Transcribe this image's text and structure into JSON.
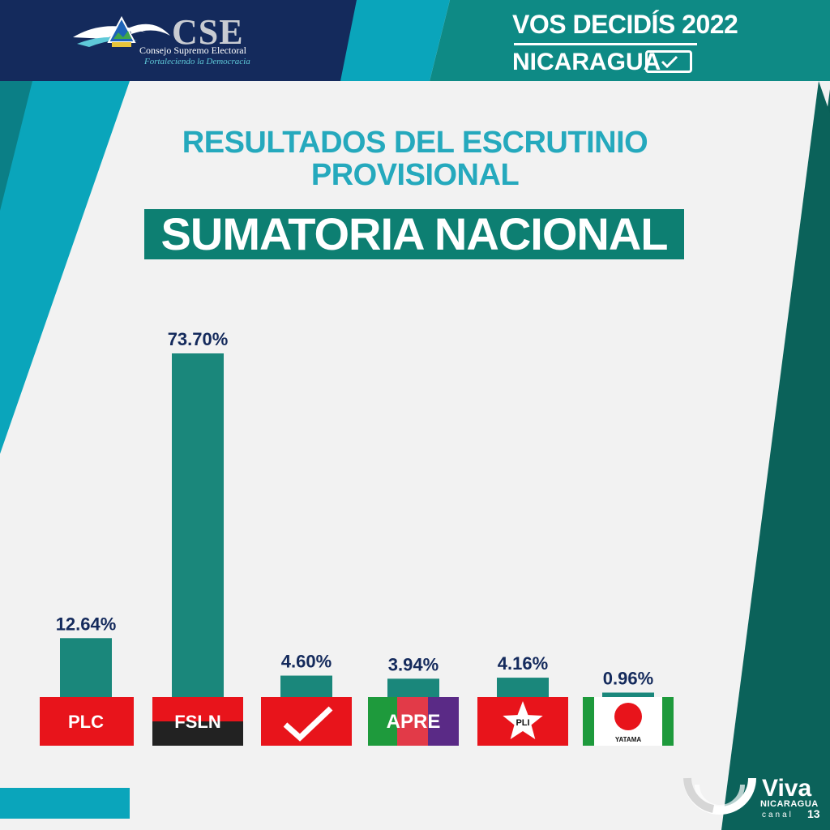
{
  "header": {
    "cse_name": "CSE",
    "cse_subtitle": "Consejo Supremo Electoral",
    "cse_tagline": "Fortaleciendo la Democracia",
    "campaign_line1": "VOS DECIDÍS 2022",
    "campaign_line2": "NICARAGUA"
  },
  "title": {
    "line1": "RESULTADOS DEL ESCRUTINIO",
    "line2": "PROVISIONAL",
    "banner": "SUMATORIA NACIONAL"
  },
  "footer": {
    "brand": "Viva",
    "brand_sub": "NICARAGUA",
    "channel": "canal",
    "channel_number": "13"
  },
  "colors": {
    "navy": "#142a5c",
    "teal_dark": "#0d7f72",
    "teal_mid": "#0e8a85",
    "cyan": "#0aa5bb",
    "bar": "#1a877b",
    "label_text": "#142a5c",
    "red": "#e8141b",
    "black": "#222222",
    "green": "#1e9a3c",
    "purple": "#5a2a86"
  },
  "chart_data": {
    "type": "bar",
    "categories": [
      "PLC",
      "FSLN",
      "✓",
      "APRE",
      "PLI",
      "YATAMA"
    ],
    "values": [
      12.64,
      73.7,
      4.6,
      3.94,
      4.16,
      0.96
    ],
    "value_labels": [
      "12.64%",
      "73.70%",
      "4.60%",
      "3.94%",
      "4.16%",
      "0.96%"
    ],
    "ylim": [
      0,
      73.7
    ],
    "grid": false,
    "legend": "none",
    "parties": [
      {
        "label": "PLC",
        "logo": "plc-flag"
      },
      {
        "label": "FSLN",
        "logo": "fsln-flag"
      },
      {
        "label": "",
        "logo": "checkmark-flag"
      },
      {
        "label": "APRE",
        "logo": "apre-flag"
      },
      {
        "label": "PLI",
        "logo": "pli-star-flag"
      },
      {
        "label": "YATAMA",
        "logo": "yatama-flag"
      }
    ]
  }
}
